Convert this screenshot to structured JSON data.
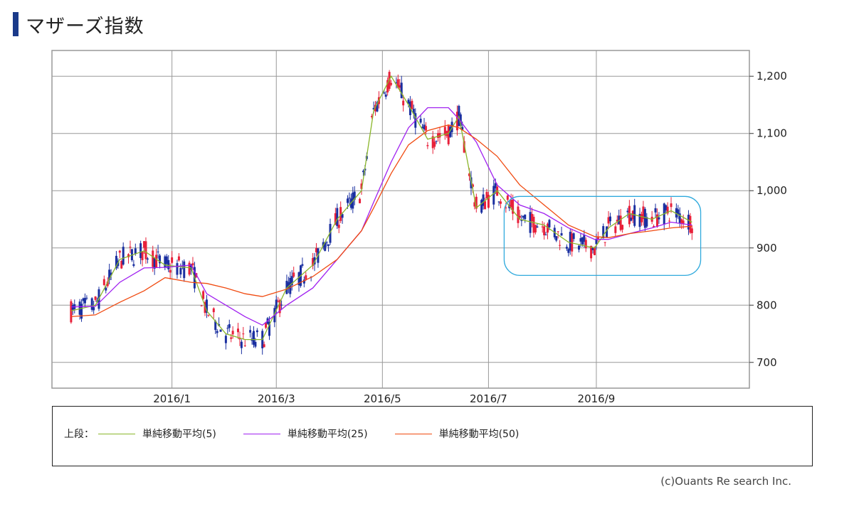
{
  "title": "マザーズ指数",
  "copyright": "(c)Ouants Re search Inc.",
  "legend": {
    "prefix": "上段：",
    "items": [
      {
        "label": "単純移動平均(5)",
        "color": "#8ab62a"
      },
      {
        "label": "単純移動平均(25)",
        "color": "#a020f0"
      },
      {
        "label": "単純移動平均(50)",
        "color": "#f04a10"
      }
    ]
  },
  "colors": {
    "up": "#e8203a",
    "down": "#1a2fa0",
    "grid": "#999999",
    "highlight": "#30aadd"
  },
  "chart_data": {
    "type": "line",
    "title": "マザーズ指数",
    "x": [
      "2015-11-04",
      "2015-11-18",
      "2015-12-02",
      "2015-12-16",
      "2015-12-28",
      "2016-01-12",
      "2016-01-21",
      "2016-02-01",
      "2016-02-12",
      "2016-02-22",
      "2016-03-07",
      "2016-03-22",
      "2016-04-05",
      "2016-04-19",
      "2016-04-26",
      "2016-05-06",
      "2016-05-16",
      "2016-05-27",
      "2016-06-08",
      "2016-06-14",
      "2016-06-24",
      "2016-07-06",
      "2016-07-19",
      "2016-08-02",
      "2016-08-16",
      "2016-08-31",
      "2016-09-08",
      "2016-09-20",
      "2016-10-03",
      "2016-10-14",
      "2016-10-26"
    ],
    "series": [
      {
        "name": "単純移動平均(5)",
        "values": [
          790,
          800,
          880,
          895,
          870,
          865,
          790,
          750,
          740,
          740,
          830,
          870,
          950,
          1000,
          1140,
          1200,
          1150,
          1090,
          1100,
          1130,
          970,
          1000,
          950,
          940,
          910,
          900,
          935,
          960,
          950,
          965,
          945
        ]
      },
      {
        "name": "単純移動平均(25)",
        "values": [
          797,
          798,
          840,
          865,
          866,
          870,
          820,
          800,
          780,
          765,
          800,
          830,
          880,
          930,
          980,
          1050,
          1110,
          1145,
          1145,
          1125,
          1085,
          1010,
          975,
          960,
          935,
          915,
          915,
          925,
          935,
          945,
          940
        ]
      },
      {
        "name": "単純移動平均(50)",
        "values": [
          780,
          783,
          805,
          825,
          848,
          840,
          838,
          830,
          820,
          815,
          828,
          850,
          880,
          930,
          970,
          1030,
          1080,
          1105,
          1115,
          1110,
          1090,
          1060,
          1010,
          975,
          940,
          920,
          918,
          925,
          930,
          935,
          938
        ]
      }
    ],
    "xticks": [
      "2016/1",
      "2016/3",
      "2016/5",
      "2016/7",
      "2016/9"
    ],
    "yticks": [
      "700",
      "800",
      "900",
      "1,000",
      "1,100",
      "1,200"
    ],
    "ylim": [
      655,
      1245
    ],
    "xlim": [
      "2015-10-24",
      "2016-11-28"
    ],
    "highlight": {
      "x_from": "2016-07-10",
      "x_to": "2016-10-31",
      "y_from": 852,
      "y_to": 990
    },
    "grid": true,
    "xlabel": "",
    "ylabel": ""
  }
}
